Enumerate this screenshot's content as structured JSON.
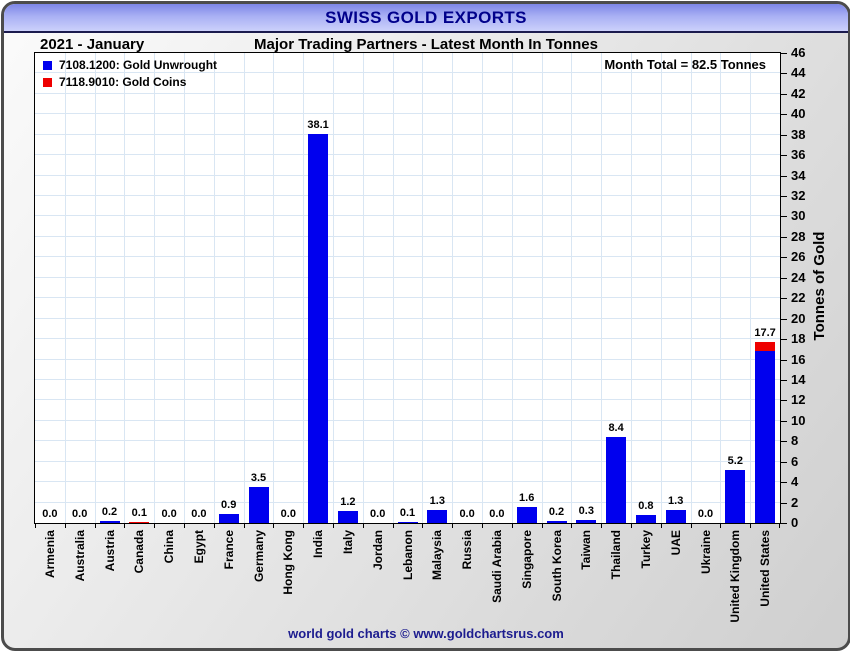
{
  "window": {
    "title": "SWISS GOLD EXPORTS",
    "footer": "world gold charts © www.goldchartsrus.com"
  },
  "header": {
    "period": "2021 - January",
    "subtitle": "Major Trading Partners - Latest Month In Tonnes",
    "month_total": "Month Total = 82.5 Tonnes"
  },
  "colors": {
    "unwrought": "#0000ee",
    "coins": "#ee0000",
    "title_text": "#00008b",
    "footer_text": "#1c1c8f",
    "gridline": "#d9e6f3"
  },
  "chart_data": {
    "type": "bar",
    "stacked": true,
    "title": "SWISS GOLD EXPORTS",
    "period": "2021 - January",
    "subtitle": "Major Trading Partners - Latest Month In Tonnes",
    "month_total_label": "Month Total = 82.5 Tonnes",
    "month_total_tonnes": 82.5,
    "ylabel": "Tonnes of Gold",
    "ylim": [
      0,
      46
    ],
    "ytick_step": 2,
    "grid": true,
    "legend_position": "top-left",
    "categories": [
      "Armenia",
      "Australia",
      "Austria",
      "Canada",
      "China",
      "Egypt",
      "France",
      "Germany",
      "Hong Kong",
      "India",
      "Italy",
      "Jordan",
      "Lebanon",
      "Malaysia",
      "Russia",
      "Saudi Arabia",
      "Singapore",
      "South Korea",
      "Taiwan",
      "Thailand",
      "Turkey",
      "UAE",
      "Ukraine",
      "United Kingdom",
      "United States"
    ],
    "series": [
      {
        "name": "7108.1200: Gold Unwrought",
        "color": "#0000ee",
        "values": [
          0.0,
          0.0,
          0.2,
          0.0,
          0.0,
          0.0,
          0.9,
          3.5,
          0.0,
          38.1,
          1.2,
          0.0,
          0.1,
          1.3,
          0.0,
          0.0,
          1.6,
          0.2,
          0.3,
          8.4,
          0.8,
          1.3,
          0.0,
          5.2,
          16.8
        ]
      },
      {
        "name": "7118.9010: Gold Coins",
        "color": "#ee0000",
        "values": [
          0.0,
          0.0,
          0.0,
          0.1,
          0.0,
          0.0,
          0.0,
          0.0,
          0.0,
          0.0,
          0.0,
          0.0,
          0.0,
          0.0,
          0.0,
          0.0,
          0.0,
          0.0,
          0.0,
          0.0,
          0.0,
          0.0,
          0.0,
          0.0,
          0.9
        ]
      }
    ],
    "bar_total_labels": [
      "0.0",
      "0.0",
      "0.2",
      "0.1",
      "0.0",
      "0.0",
      "0.9",
      "3.5",
      "0.0",
      "38.1",
      "1.2",
      "0.0",
      "0.1",
      "1.3",
      "0.0",
      "0.0",
      "1.6",
      "0.2",
      "0.3",
      "8.4",
      "0.8",
      "1.3",
      "0.0",
      "5.2",
      "17.7"
    ]
  }
}
